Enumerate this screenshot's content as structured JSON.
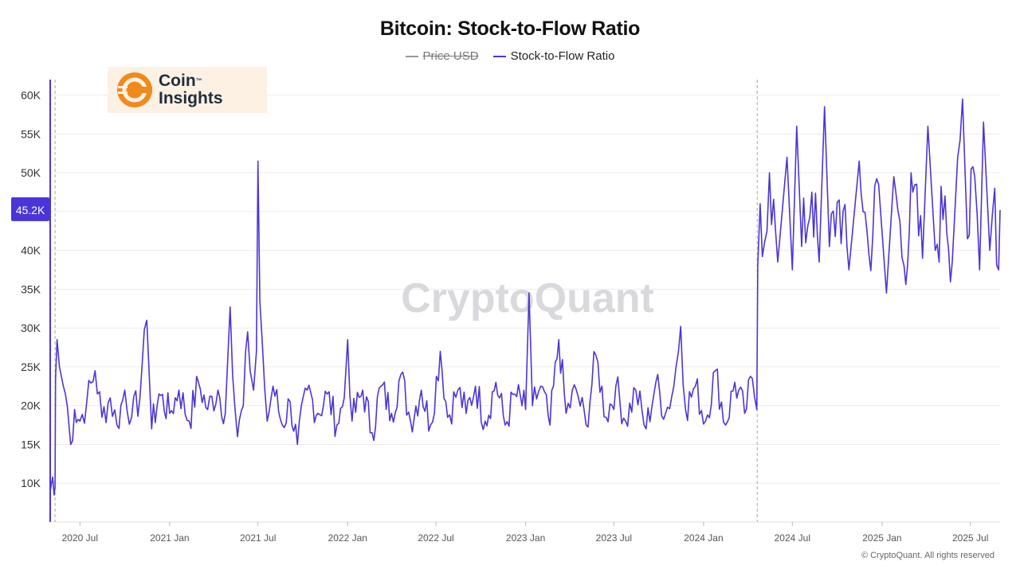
{
  "chart_data": {
    "type": "line",
    "title": "Bitcoin: Stock-to-Flow Ratio",
    "legend": [
      {
        "name": "Price USD",
        "color": "#999999",
        "hidden": true
      },
      {
        "name": "Stock-to-Flow Ratio",
        "color": "#4a36d6",
        "hidden": false
      }
    ],
    "legend_position": "top-center",
    "x_ticks": [
      "2020 Jul",
      "2021 Jan",
      "2021 Jul",
      "2022 Jan",
      "2022 Jul",
      "2023 Jan",
      "2023 Jul",
      "2024 Jan",
      "2024 Jul",
      "2025 Jan",
      "2025 Jul"
    ],
    "y_ticks": [
      "10K",
      "15K",
      "20K",
      "25K",
      "30K",
      "35K",
      "40K",
      "45K",
      "50K",
      "55K",
      "60K"
    ],
    "ylim": [
      5000,
      62000
    ],
    "xlim": [
      "2020-05-01",
      "2025-08-31"
    ],
    "current_value_label": "45.2K",
    "current_value": 45200,
    "halving_dates": [
      "2020-05-11",
      "2024-04-20"
    ],
    "grid": "horizontal",
    "series": [
      {
        "name": "Stock-to-Flow Ratio",
        "points": [
          [
            "2020-05-01",
            9000
          ],
          [
            "2020-05-06",
            10800
          ],
          [
            "2020-05-09",
            8500
          ],
          [
            "2020-05-11",
            9500
          ],
          [
            "2020-05-12",
            23500
          ],
          [
            "2020-05-15",
            28500
          ],
          [
            "2020-05-20",
            25000
          ],
          [
            "2020-05-28",
            22500
          ],
          [
            "2020-06-05",
            20000
          ],
          [
            "2020-06-12",
            15000
          ],
          [
            "2020-06-20",
            19500
          ],
          [
            "2020-07-01",
            18000
          ],
          [
            "2020-07-15",
            20500
          ],
          [
            "2020-08-01",
            24500
          ],
          [
            "2020-08-15",
            18500
          ],
          [
            "2020-09-01",
            21000
          ],
          [
            "2020-09-15",
            17500
          ],
          [
            "2020-10-01",
            22000
          ],
          [
            "2020-10-15",
            18500
          ],
          [
            "2020-11-01",
            21000
          ],
          [
            "2020-11-10",
            29800
          ],
          [
            "2020-11-15",
            31000
          ],
          [
            "2020-11-25",
            17000
          ],
          [
            "2020-12-10",
            21500
          ],
          [
            "2021-01-01",
            19000
          ],
          [
            "2021-01-20",
            22000
          ],
          [
            "2021-02-10",
            18000
          ],
          [
            "2021-03-01",
            23000
          ],
          [
            "2021-03-20",
            19500
          ],
          [
            "2021-04-10",
            22000
          ],
          [
            "2021-04-25",
            19000
          ],
          [
            "2021-05-05",
            32700
          ],
          [
            "2021-05-10",
            24000
          ],
          [
            "2021-05-20",
            16000
          ],
          [
            "2021-06-01",
            20000
          ],
          [
            "2021-06-10",
            29500
          ],
          [
            "2021-06-15",
            24500
          ],
          [
            "2021-06-22",
            22000
          ],
          [
            "2021-06-28",
            27000
          ],
          [
            "2021-07-01",
            51500
          ],
          [
            "2021-07-05",
            33500
          ],
          [
            "2021-07-10",
            28000
          ],
          [
            "2021-07-20",
            18000
          ],
          [
            "2021-08-01",
            22500
          ],
          [
            "2021-08-20",
            17500
          ],
          [
            "2021-09-05",
            20500
          ],
          [
            "2021-09-20",
            15000
          ],
          [
            "2021-10-10",
            22000
          ],
          [
            "2021-11-01",
            19000
          ],
          [
            "2021-11-20",
            21500
          ],
          [
            "2021-12-10",
            17500
          ],
          [
            "2021-12-25",
            21000
          ],
          [
            "2022-01-01",
            28500
          ],
          [
            "2022-01-10",
            18000
          ],
          [
            "2022-02-01",
            22000
          ],
          [
            "2022-02-20",
            16500
          ],
          [
            "2022-03-10",
            22500
          ],
          [
            "2022-04-01",
            19000
          ],
          [
            "2022-04-20",
            24000
          ],
          [
            "2022-05-10",
            18000
          ],
          [
            "2022-06-01",
            22000
          ],
          [
            "2022-06-20",
            17500
          ],
          [
            "2022-07-10",
            27000
          ],
          [
            "2022-07-25",
            18500
          ],
          [
            "2022-08-15",
            22000
          ],
          [
            "2022-09-01",
            19000
          ],
          [
            "2022-09-20",
            22500
          ],
          [
            "2022-10-10",
            18000
          ],
          [
            "2022-11-01",
            23000
          ],
          [
            "2022-11-20",
            17500
          ],
          [
            "2022-12-10",
            21500
          ],
          [
            "2023-01-01",
            19500
          ],
          [
            "2023-01-08",
            34500
          ],
          [
            "2023-01-15",
            20000
          ],
          [
            "2023-02-01",
            22500
          ],
          [
            "2023-02-20",
            17500
          ],
          [
            "2023-03-10",
            28500
          ],
          [
            "2023-03-25",
            19000
          ],
          [
            "2023-04-15",
            22000
          ],
          [
            "2023-05-05",
            17500
          ],
          [
            "2023-05-25",
            26500
          ],
          [
            "2023-06-15",
            18500
          ],
          [
            "2023-07-05",
            22500
          ],
          [
            "2023-07-25",
            18000
          ],
          [
            "2023-08-15",
            22000
          ],
          [
            "2023-09-05",
            17000
          ],
          [
            "2023-09-25",
            23000
          ],
          [
            "2023-10-15",
            19000
          ],
          [
            "2023-11-01",
            22500
          ],
          [
            "2023-11-15",
            30200
          ],
          [
            "2023-11-25",
            19500
          ],
          [
            "2023-12-15",
            22500
          ],
          [
            "2024-01-05",
            18000
          ],
          [
            "2024-01-25",
            24500
          ],
          [
            "2024-02-15",
            17500
          ],
          [
            "2024-03-05",
            23000
          ],
          [
            "2024-03-25",
            19000
          ],
          [
            "2024-04-10",
            23500
          ],
          [
            "2024-04-19",
            19500
          ],
          [
            "2024-04-21",
            38000
          ],
          [
            "2024-04-26",
            46000
          ],
          [
            "2024-05-05",
            41000
          ],
          [
            "2024-05-15",
            50000
          ],
          [
            "2024-06-01",
            38500
          ],
          [
            "2024-06-20",
            52000
          ],
          [
            "2024-07-01",
            37500
          ],
          [
            "2024-07-10",
            56000
          ],
          [
            "2024-07-20",
            40500
          ],
          [
            "2024-08-10",
            47500
          ],
          [
            "2024-08-25",
            38500
          ],
          [
            "2024-09-05",
            58500
          ],
          [
            "2024-09-15",
            40500
          ],
          [
            "2024-10-05",
            46500
          ],
          [
            "2024-10-25",
            37500
          ],
          [
            "2024-11-15",
            51500
          ],
          [
            "2024-12-05",
            39500
          ],
          [
            "2024-12-25",
            48500
          ],
          [
            "2025-01-10",
            34500
          ],
          [
            "2025-01-25",
            49500
          ],
          [
            "2025-02-15",
            38000
          ],
          [
            "2025-03-05",
            47500
          ],
          [
            "2025-03-25",
            39000
          ],
          [
            "2025-04-05",
            56000
          ],
          [
            "2025-04-20",
            40000
          ],
          [
            "2025-05-10",
            47000
          ],
          [
            "2025-05-25",
            38500
          ],
          [
            "2025-06-05",
            52000
          ],
          [
            "2025-06-15",
            59500
          ],
          [
            "2025-06-25",
            41500
          ],
          [
            "2025-07-10",
            49500
          ],
          [
            "2025-07-20",
            37500
          ],
          [
            "2025-07-28",
            56500
          ],
          [
            "2025-08-10",
            40000
          ],
          [
            "2025-08-20",
            48000
          ],
          [
            "2025-08-28",
            37500
          ],
          [
            "2025-08-31",
            45200
          ]
        ]
      }
    ]
  },
  "brand": {
    "logo_line1": "Coin",
    "logo_tm": "™",
    "logo_line2": "Insights",
    "watermark": "CryptoQuant",
    "copyright": "© CryptoQuant. All rights reserved"
  },
  "colors": {
    "series": "#4a36d6",
    "price": "#999999",
    "logo_orange": "#f08a1c",
    "logo_bg": "#fdf1e4"
  }
}
